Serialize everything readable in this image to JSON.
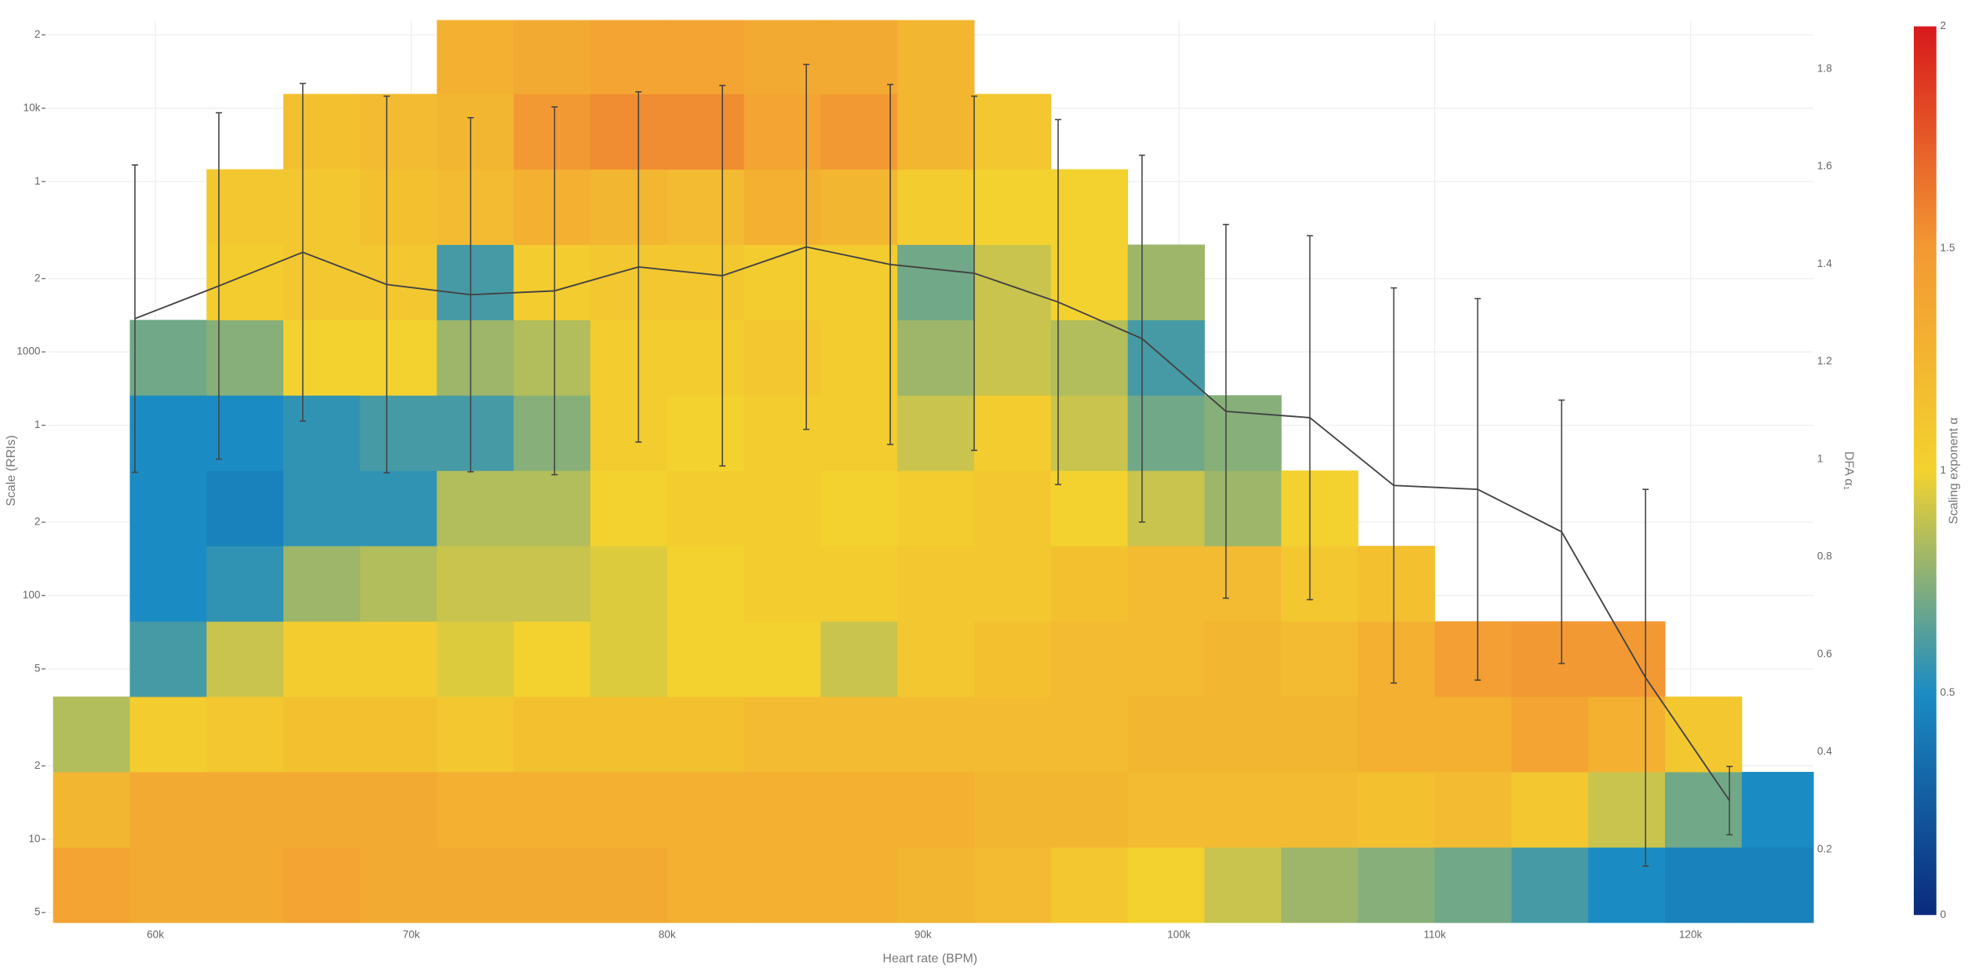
{
  "chart_data": {
    "type": "heatmap",
    "xlabel": "Heart rate (BPM)",
    "ylabel": "Scale (RRIs)",
    "y2label": "DFA α₁",
    "colorbar_title": "Scaling exponent α",
    "grid": true,
    "xlim": [
      55800,
      124800
    ],
    "xticks": [
      {
        "value": 60000,
        "label": "60k"
      },
      {
        "value": 70000,
        "label": "70k"
      },
      {
        "value": 80000,
        "label": "80k"
      },
      {
        "value": 90000,
        "label": "90k"
      },
      {
        "value": 100000,
        "label": "100k"
      },
      {
        "value": 110000,
        "label": "110k"
      },
      {
        "value": 120000,
        "label": "120k"
      }
    ],
    "ylim": [
      4.55,
      23000
    ],
    "ylog": true,
    "yticks": [
      5,
      10,
      {
        "value": 20,
        "label": "2"
      },
      {
        "value": 50,
        "label": "5"
      },
      100,
      {
        "value": 200,
        "label": "2"
      },
      {
        "value": 500,
        "label": "1"
      },
      1000,
      {
        "value": 2000,
        "label": "2"
      },
      {
        "value": 5000,
        "label": "1"
      },
      {
        "value": 10000,
        "label": "10k"
      },
      {
        "value": 20000,
        "label": "2"
      }
    ],
    "y2lim": [
      0.05,
      1.9
    ],
    "y2ticks": [
      0.2,
      0.4,
      0.6,
      0.8,
      1,
      1.2,
      1.4,
      1.6,
      1.8
    ],
    "xbins": [
      56000,
      59000,
      62000,
      65000,
      68000,
      71000,
      74000,
      77000,
      80000,
      83000,
      86000,
      89000,
      92000,
      95000,
      98000,
      101000,
      104000,
      107000,
      110000,
      113000,
      116000,
      119000,
      122000,
      125000
    ],
    "ybins": [
      4.55,
      9.27,
      18.9,
      38.5,
      78.4,
      160,
      326,
      664,
      1353,
      2757,
      5618,
      11450,
      23000
    ],
    "z": [
      [
        1.4,
        1.35,
        1.35,
        1.4,
        1.35,
        1.35,
        1.35,
        1.35,
        1.3,
        1.3,
        1.3,
        1.25,
        1.2,
        1.1,
        1.0,
        0.9,
        0.8,
        0.75,
        0.7,
        0.6,
        0.5,
        0.45,
        0.45
      ],
      [
        1.25,
        1.35,
        1.35,
        1.35,
        1.35,
        1.3,
        1.3,
        1.3,
        1.3,
        1.3,
        1.3,
        1.3,
        1.25,
        1.25,
        1.2,
        1.2,
        1.2,
        1.15,
        1.2,
        1.1,
        0.9,
        0.7,
        0.5
      ],
      [
        0.85,
        1.05,
        1.1,
        1.15,
        1.15,
        1.1,
        1.15,
        1.15,
        1.15,
        1.2,
        1.2,
        1.2,
        1.2,
        1.2,
        1.25,
        1.25,
        1.25,
        1.3,
        1.3,
        1.4,
        1.3,
        1.1,
        null
      ],
      [
        null,
        0.6,
        0.9,
        1.05,
        1.05,
        0.95,
        1.0,
        0.95,
        1.0,
        1.0,
        0.9,
        1.1,
        1.15,
        1.2,
        1.2,
        1.25,
        1.2,
        1.3,
        1.45,
        1.5,
        1.5,
        null,
        null
      ],
      [
        null,
        0.5,
        0.55,
        0.8,
        0.85,
        0.9,
        0.9,
        0.95,
        1.0,
        1.05,
        1.05,
        1.1,
        1.1,
        1.15,
        1.2,
        1.2,
        1.1,
        1.15,
        null,
        null,
        null,
        null,
        null
      ],
      [
        null,
        0.5,
        0.45,
        0.55,
        0.55,
        0.85,
        0.85,
        1.0,
        1.05,
        1.05,
        1.0,
        1.05,
        1.1,
        1.0,
        0.9,
        0.8,
        1.0,
        null,
        null,
        null,
        null,
        null,
        null
      ],
      [
        null,
        0.5,
        0.5,
        0.55,
        0.6,
        0.6,
        0.75,
        1.05,
        1.0,
        1.05,
        1.05,
        0.9,
        1.05,
        0.9,
        0.7,
        0.75,
        null,
        null,
        null,
        null,
        null,
        null,
        null
      ],
      [
        null,
        0.7,
        0.75,
        1.0,
        1.0,
        0.8,
        0.85,
        1.05,
        1.05,
        1.1,
        1.05,
        0.8,
        0.9,
        0.85,
        0.6,
        null,
        null,
        null,
        null,
        null,
        null,
        null,
        null
      ],
      [
        null,
        null,
        1.05,
        1.1,
        1.1,
        0.6,
        1.05,
        1.1,
        1.1,
        1.05,
        1.05,
        0.7,
        0.9,
        1.0,
        0.8,
        null,
        null,
        null,
        null,
        null,
        null,
        null,
        null
      ],
      [
        null,
        null,
        1.1,
        1.1,
        1.15,
        1.2,
        1.3,
        1.25,
        1.2,
        1.3,
        1.25,
        1.05,
        1.0,
        1.0,
        null,
        null,
        null,
        null,
        null,
        null,
        null,
        null,
        null
      ],
      [
        null,
        null,
        null,
        1.15,
        1.2,
        1.25,
        1.5,
        1.55,
        1.55,
        1.4,
        1.5,
        1.25,
        1.1,
        null,
        null,
        null,
        null,
        null,
        null,
        null,
        null,
        null,
        null
      ],
      [
        null,
        null,
        null,
        null,
        null,
        1.3,
        1.35,
        1.4,
        1.4,
        1.35,
        1.35,
        1.25,
        null,
        null,
        null,
        null,
        null,
        null,
        null,
        null,
        null,
        null,
        null
      ]
    ],
    "zlim": [
      0,
      2
    ],
    "zticks": [
      0,
      0.5,
      1,
      1.5,
      2
    ],
    "colorscale": [
      [
        0,
        "#0b2a7c"
      ],
      [
        0.25,
        "#1b8cc3"
      ],
      [
        0.5,
        "#f3d22f"
      ],
      [
        0.75,
        "#f39933"
      ],
      [
        1,
        "#d7191c"
      ]
    ],
    "line": {
      "color": "#444444",
      "x": [
        59200,
        62480,
        65760,
        69040,
        72320,
        75600,
        78880,
        82160,
        85440,
        88720,
        92000,
        95280,
        98560,
        101840,
        105120,
        108400,
        111680,
        114960,
        118240,
        121520
      ],
      "values": [
        1.288,
        1.355,
        1.424,
        1.358,
        1.337,
        1.345,
        1.394,
        1.376,
        1.435,
        1.399,
        1.381,
        1.322,
        1.247,
        1.098,
        1.085,
        0.946,
        0.938,
        0.851,
        0.552,
        0.3
      ],
      "errors": [
        0.315,
        0.355,
        0.346,
        0.386,
        0.363,
        0.377,
        0.359,
        0.39,
        0.374,
        0.369,
        0.363,
        0.374,
        0.376,
        0.383,
        0.373,
        0.405,
        0.391,
        0.27,
        0.386,
        0.07
      ]
    }
  }
}
